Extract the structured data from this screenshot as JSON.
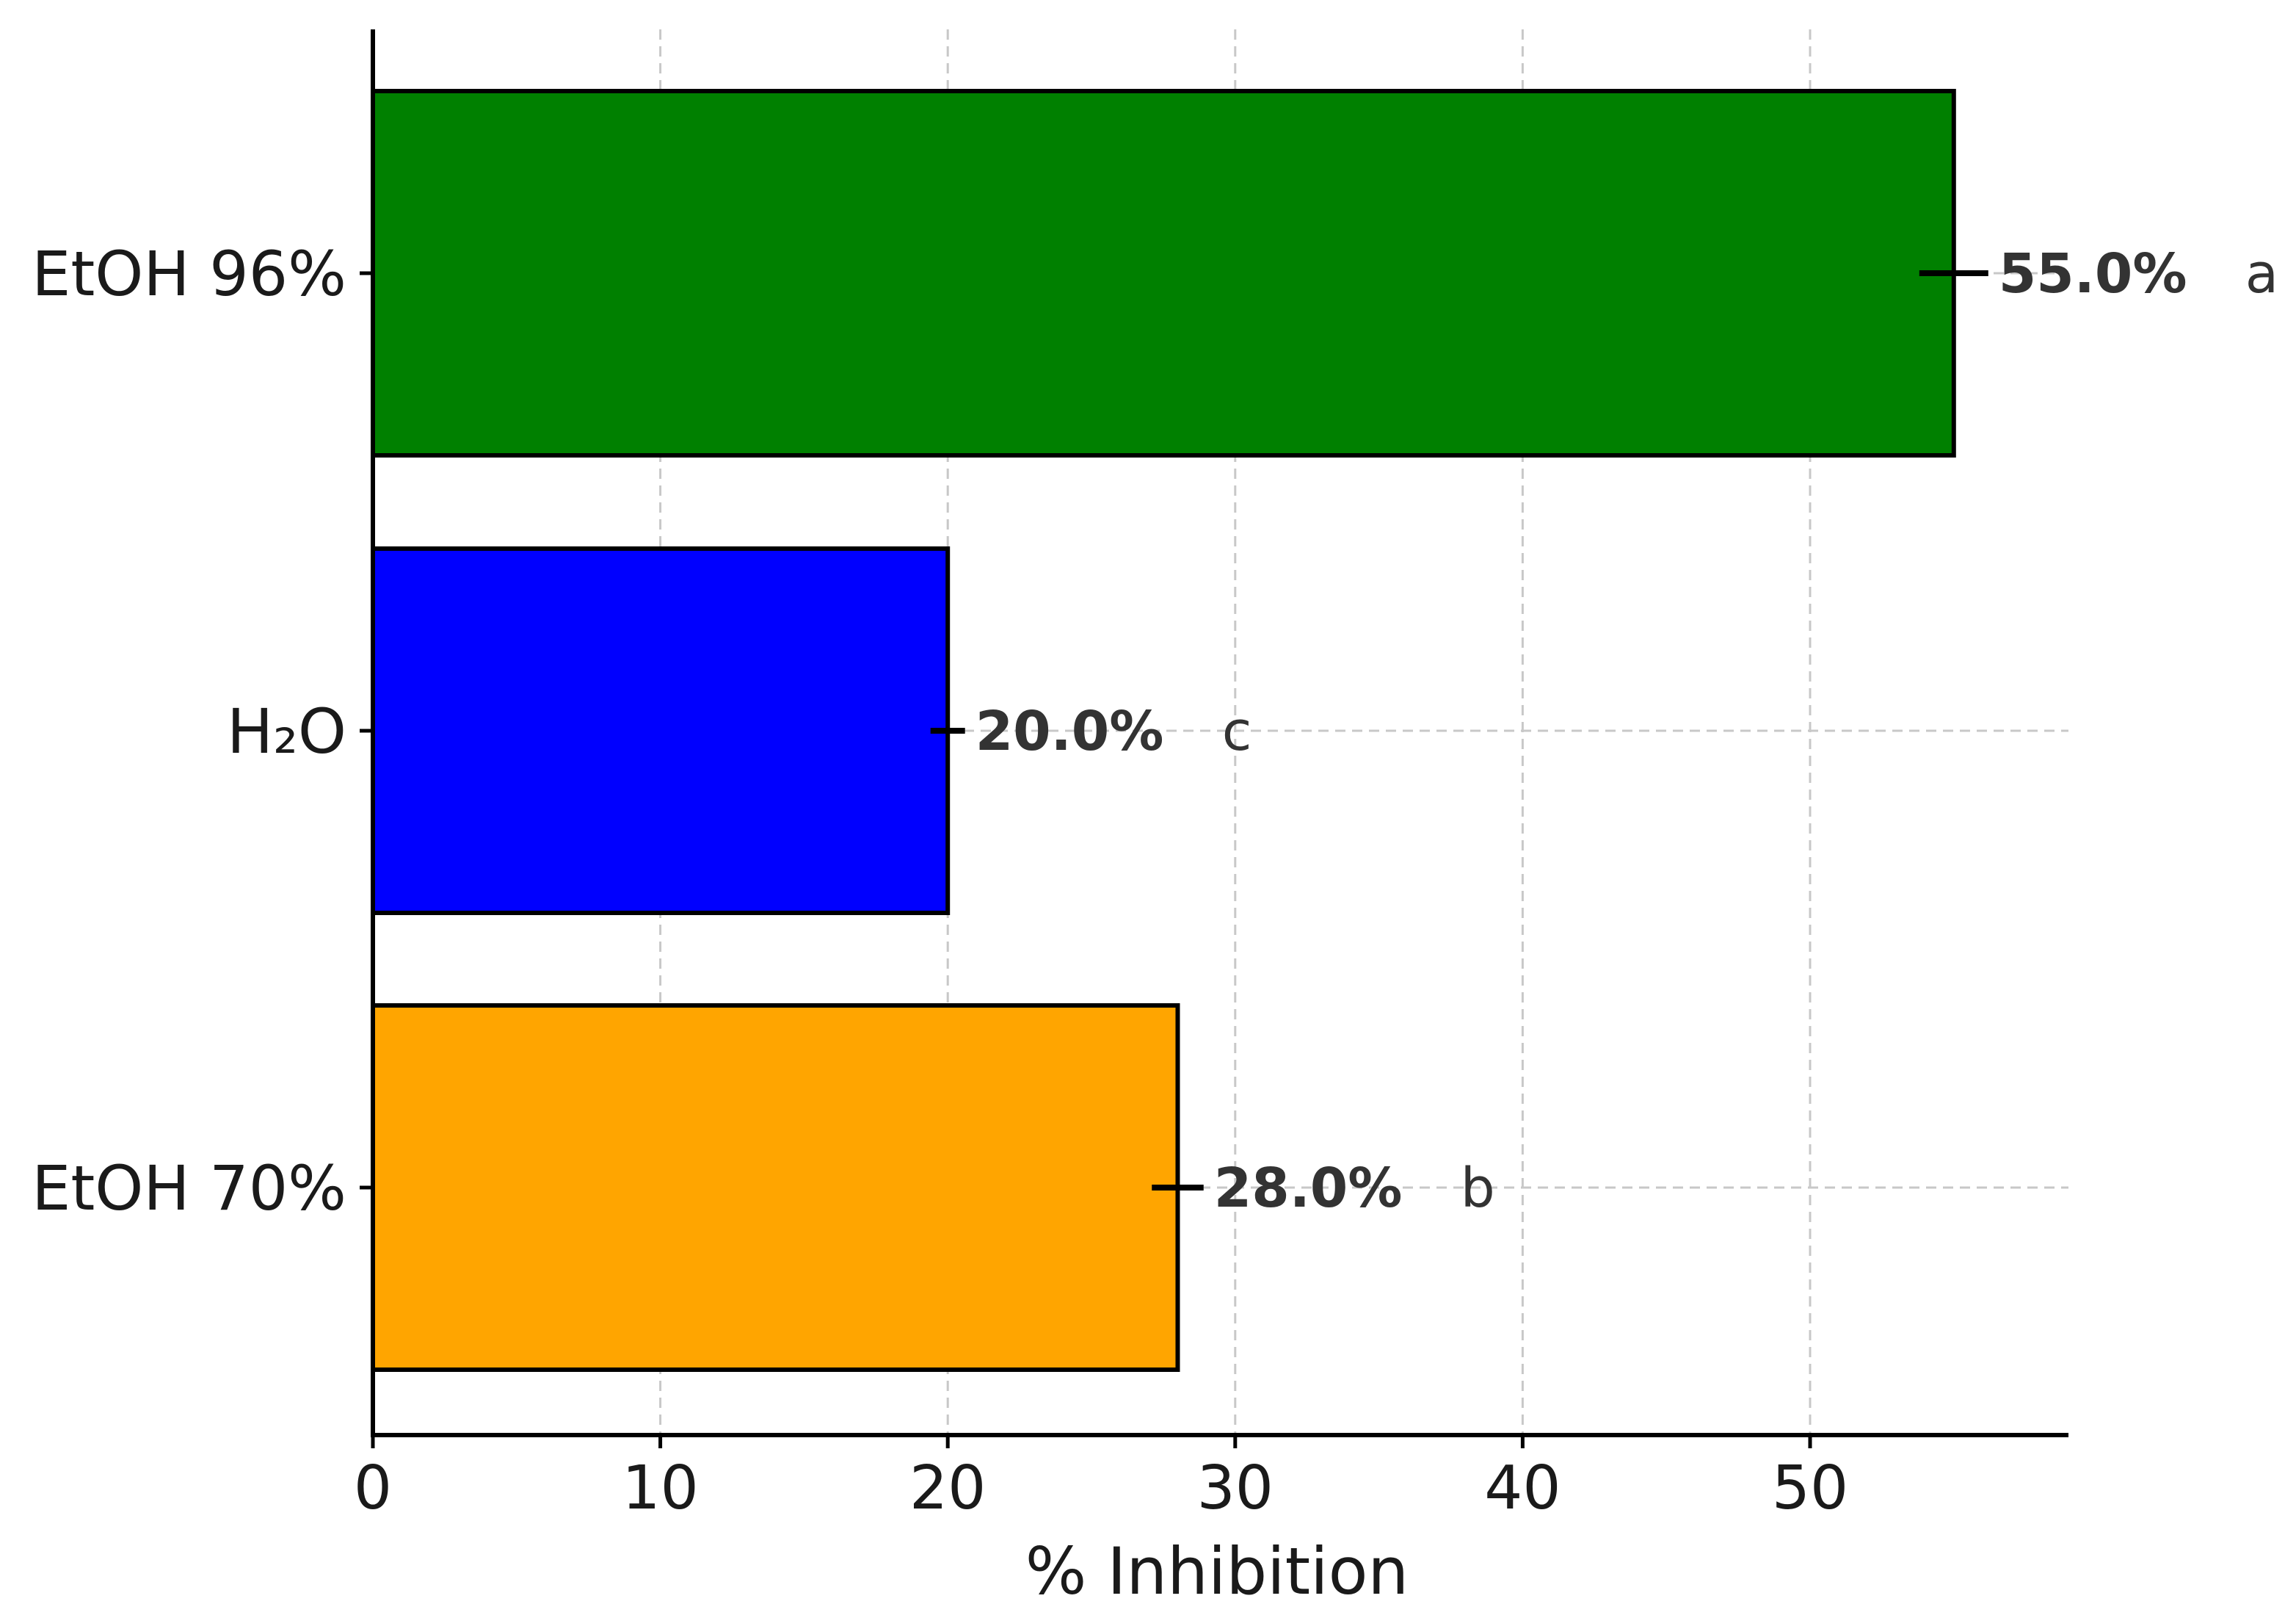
{
  "chart_data": {
    "type": "bar",
    "orientation": "horizontal",
    "categories": [
      "EtOH 96%",
      "H₂O",
      "EtOH 70%"
    ],
    "values": [
      55.0,
      20.0,
      28.0
    ],
    "error": [
      1.2,
      0.6,
      0.9
    ],
    "value_labels": [
      "55.0%",
      "20.0%",
      "28.0%"
    ],
    "significance_letters": [
      "a",
      "c",
      "b"
    ],
    "colors": [
      "#008000",
      "#0000ff",
      "#ffa500"
    ],
    "xlabel": "% Inhibition",
    "ylabel": "",
    "title": "",
    "xlim": [
      0,
      59
    ],
    "xticks": [
      0,
      10,
      20,
      30,
      40,
      50
    ],
    "xtick_labels": [
      "0",
      "10",
      "20",
      "30",
      "40",
      "50"
    ],
    "grid": true,
    "grid_style": "dashed",
    "legend": false
  }
}
